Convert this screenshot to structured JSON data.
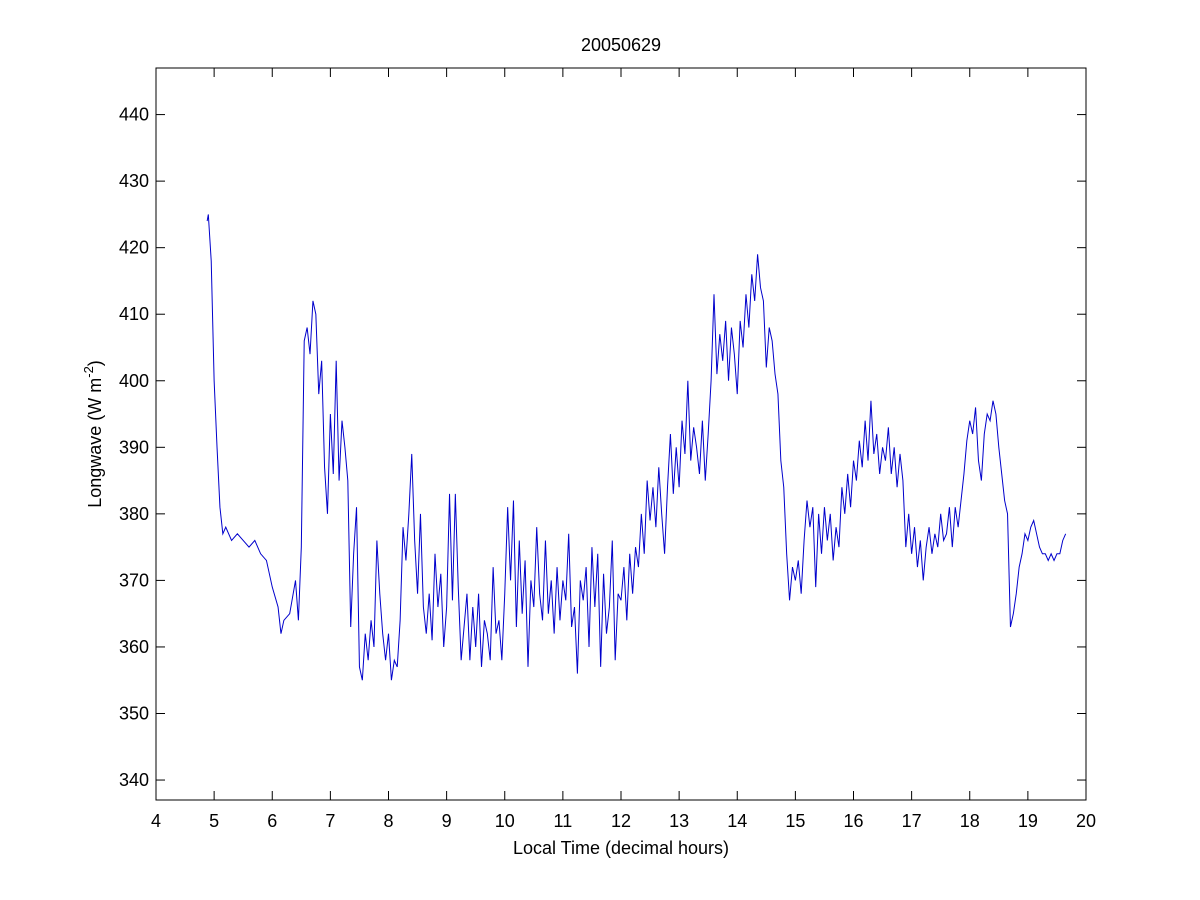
{
  "chart_data": {
    "type": "line",
    "title": "20050629",
    "xlabel": "Local Time (decimal hours)",
    "ylabel": [
      "Longwave (W m",
      "-2",
      ")"
    ],
    "xlim": [
      4,
      20
    ],
    "xticks": [
      4,
      5,
      6,
      7,
      8,
      9,
      10,
      11,
      12,
      13,
      14,
      15,
      16,
      17,
      18,
      19,
      20
    ],
    "ylim": [
      337,
      447
    ],
    "yticks": [
      340,
      350,
      360,
      370,
      380,
      390,
      400,
      410,
      420,
      430,
      440
    ],
    "series": [
      {
        "color": "#0000cc",
        "x": [
          4.88,
          4.9,
          4.95,
          5.0,
          5.05,
          5.1,
          5.15,
          5.2,
          5.3,
          5.4,
          5.5,
          5.6,
          5.7,
          5.8,
          5.9,
          6.0,
          6.1,
          6.15,
          6.2,
          6.3,
          6.4,
          6.45,
          6.5,
          6.55,
          6.6,
          6.65,
          6.7,
          6.75,
          6.8,
          6.85,
          6.9,
          6.95,
          7.0,
          7.05,
          7.1,
          7.15,
          7.2,
          7.25,
          7.3,
          7.35,
          7.4,
          7.45,
          7.5,
          7.55,
          7.6,
          7.65,
          7.7,
          7.75,
          7.8,
          7.85,
          7.9,
          7.95,
          8.0,
          8.05,
          8.1,
          8.15,
          8.2,
          8.25,
          8.3,
          8.35,
          8.4,
          8.45,
          8.5,
          8.55,
          8.6,
          8.65,
          8.7,
          8.75,
          8.8,
          8.85,
          8.9,
          8.95,
          9.0,
          9.05,
          9.1,
          9.15,
          9.2,
          9.25,
          9.3,
          9.35,
          9.4,
          9.45,
          9.5,
          9.55,
          9.6,
          9.65,
          9.7,
          9.75,
          9.8,
          9.85,
          9.9,
          9.95,
          10.0,
          10.05,
          10.1,
          10.15,
          10.2,
          10.25,
          10.3,
          10.35,
          10.4,
          10.45,
          10.5,
          10.55,
          10.6,
          10.65,
          10.7,
          10.75,
          10.8,
          10.85,
          10.9,
          10.95,
          11.0,
          11.05,
          11.1,
          11.15,
          11.2,
          11.25,
          11.3,
          11.35,
          11.4,
          11.45,
          11.5,
          11.55,
          11.6,
          11.65,
          11.7,
          11.75,
          11.8,
          11.85,
          11.9,
          11.95,
          12.0,
          12.05,
          12.1,
          12.15,
          12.2,
          12.25,
          12.3,
          12.35,
          12.4,
          12.45,
          12.5,
          12.55,
          12.6,
          12.65,
          12.7,
          12.75,
          12.8,
          12.85,
          12.9,
          12.95,
          13.0,
          13.05,
          13.1,
          13.15,
          13.2,
          13.25,
          13.3,
          13.35,
          13.4,
          13.45,
          13.5,
          13.55,
          13.6,
          13.65,
          13.7,
          13.75,
          13.8,
          13.85,
          13.9,
          13.95,
          14.0,
          14.05,
          14.1,
          14.15,
          14.2,
          14.25,
          14.3,
          14.35,
          14.4,
          14.45,
          14.5,
          14.55,
          14.6,
          14.65,
          14.7,
          14.75,
          14.8,
          14.85,
          14.9,
          14.95,
          15.0,
          15.05,
          15.1,
          15.15,
          15.2,
          15.25,
          15.3,
          15.35,
          15.4,
          15.45,
          15.5,
          15.55,
          15.6,
          15.65,
          15.7,
          15.75,
          15.8,
          15.85,
          15.9,
          15.95,
          16.0,
          16.05,
          16.1,
          16.15,
          16.2,
          16.25,
          16.3,
          16.35,
          16.4,
          16.45,
          16.5,
          16.55,
          16.6,
          16.65,
          16.7,
          16.75,
          16.8,
          16.85,
          16.9,
          16.95,
          17.0,
          17.05,
          17.1,
          17.15,
          17.2,
          17.25,
          17.3,
          17.35,
          17.4,
          17.45,
          17.5,
          17.55,
          17.6,
          17.65,
          17.7,
          17.75,
          17.8,
          17.85,
          17.9,
          17.95,
          18.0,
          18.05,
          18.1,
          18.15,
          18.2,
          18.25,
          18.3,
          18.35,
          18.4,
          18.45,
          18.5,
          18.55,
          18.6,
          18.65,
          18.7,
          18.75,
          18.8,
          18.85,
          18.9,
          18.95,
          19.0,
          19.05,
          19.1,
          19.15,
          19.2,
          19.25,
          19.3,
          19.35,
          19.4,
          19.45,
          19.5,
          19.55,
          19.6,
          19.65
        ],
        "values": [
          424,
          425,
          418,
          400,
          390,
          381,
          377,
          378,
          376,
          377,
          376,
          375,
          376,
          374,
          373,
          369,
          366,
          362,
          364,
          365,
          370,
          364,
          375,
          406,
          408,
          404,
          412,
          410,
          398,
          403,
          387,
          380,
          395,
          386,
          403,
          385,
          394,
          390,
          385,
          363,
          374,
          381,
          357,
          355,
          362,
          358,
          364,
          360,
          376,
          368,
          362,
          358,
          362,
          355,
          358,
          357,
          364,
          378,
          373,
          380,
          389,
          376,
          368,
          380,
          366,
          362,
          368,
          361,
          374,
          366,
          371,
          360,
          366,
          383,
          367,
          383,
          369,
          358,
          363,
          368,
          358,
          366,
          360,
          368,
          357,
          364,
          362,
          358,
          372,
          362,
          364,
          358,
          368,
          381,
          370,
          382,
          363,
          376,
          365,
          373,
          357,
          370,
          366,
          378,
          368,
          364,
          376,
          365,
          370,
          362,
          372,
          364,
          370,
          367,
          377,
          363,
          366,
          356,
          370,
          367,
          372,
          360,
          375,
          366,
          374,
          357,
          371,
          362,
          366,
          376,
          358,
          368,
          367,
          372,
          364,
          374,
          368,
          375,
          372,
          380,
          374,
          385,
          379,
          384,
          378,
          387,
          380,
          374,
          384,
          392,
          383,
          390,
          384,
          394,
          389,
          400,
          388,
          393,
          390,
          386,
          394,
          385,
          392,
          400,
          413,
          401,
          407,
          403,
          409,
          400,
          408,
          404,
          398,
          409,
          405,
          413,
          408,
          416,
          412,
          419,
          414,
          412,
          402,
          408,
          406,
          401,
          398,
          388,
          384,
          374,
          367,
          372,
          370,
          373,
          368,
          376,
          382,
          378,
          381,
          369,
          380,
          374,
          381,
          376,
          380,
          373,
          378,
          375,
          384,
          380,
          386,
          381,
          388,
          385,
          391,
          387,
          394,
          388,
          397,
          389,
          392,
          386,
          390,
          388,
          393,
          386,
          390,
          384,
          389,
          385,
          375,
          380,
          374,
          378,
          372,
          376,
          370,
          375,
          378,
          374,
          377,
          375,
          380,
          376,
          377,
          381,
          375,
          381,
          378,
          382,
          386,
          391,
          394,
          392,
          396,
          388,
          385,
          392,
          395,
          394,
          397,
          395,
          390,
          386,
          382,
          380,
          363,
          365,
          368,
          372,
          374,
          377,
          376,
          378,
          379,
          377,
          375,
          374,
          374,
          373,
          374,
          373,
          374,
          374,
          376,
          377
        ]
      }
    ]
  }
}
